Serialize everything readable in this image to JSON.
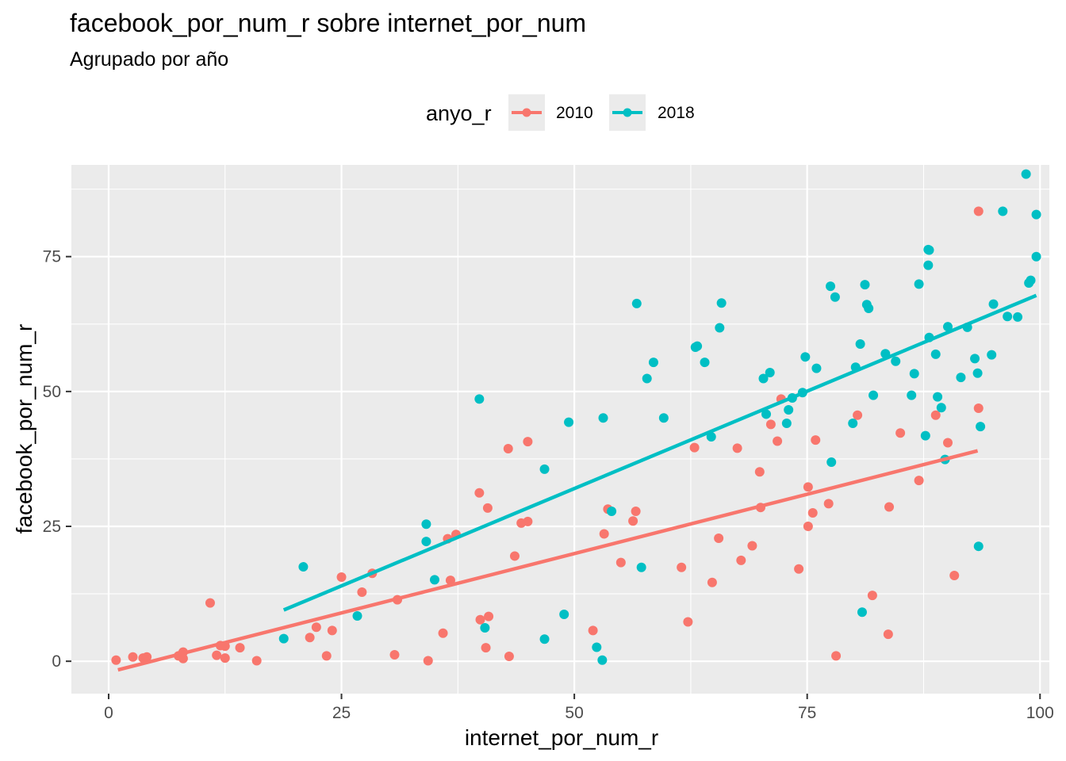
{
  "chart_data": {
    "type": "scatter",
    "title": "facebook_por_num_r sobre internet_por_num",
    "subtitle": "Agrupado por año",
    "xlabel": "internet_por_num_r",
    "ylabel": "facebook_por_num_r",
    "xlim": [
      -4,
      101
    ],
    "ylim": [
      -6,
      92
    ],
    "xticks": [
      0,
      25,
      50,
      75,
      100
    ],
    "yticks": [
      0,
      25,
      50,
      75
    ],
    "grid": true,
    "legend": {
      "title": "anyo_r",
      "position": "top",
      "entries": [
        "2010",
        "2018"
      ]
    },
    "series": [
      {
        "name": "2010",
        "color": "#F8766D",
        "fit": {
          "x": [
            1,
            93.3
          ],
          "y": [
            -1.6,
            39.0
          ]
        },
        "points": [
          [
            0.8,
            0.2
          ],
          [
            2.6,
            0.8
          ],
          [
            3.7,
            0.6
          ],
          [
            4.1,
            0.8
          ],
          [
            7.5,
            1.0
          ],
          [
            8.0,
            1.7
          ],
          [
            8.0,
            0.5
          ],
          [
            10.9,
            10.8
          ],
          [
            11.6,
            1.1
          ],
          [
            12.0,
            2.9
          ],
          [
            12.5,
            2.8
          ],
          [
            12.5,
            0.6
          ],
          [
            14.1,
            2.5
          ],
          [
            15.9,
            0.1
          ],
          [
            21.6,
            4.4
          ],
          [
            22.3,
            6.3
          ],
          [
            23.4,
            1.0
          ],
          [
            24.0,
            5.7
          ],
          [
            25.0,
            15.6
          ],
          [
            27.2,
            12.8
          ],
          [
            28.3,
            16.3
          ],
          [
            30.7,
            1.2
          ],
          [
            31.0,
            11.4
          ],
          [
            34.3,
            0.1
          ],
          [
            35.9,
            5.2
          ],
          [
            36.4,
            22.7
          ],
          [
            36.7,
            15.0
          ],
          [
            37.3,
            23.5
          ],
          [
            39.8,
            31.2
          ],
          [
            39.9,
            7.7
          ],
          [
            40.5,
            2.5
          ],
          [
            40.7,
            28.4
          ],
          [
            40.8,
            8.3
          ],
          [
            42.9,
            39.4
          ],
          [
            43.0,
            0.9
          ],
          [
            43.6,
            19.5
          ],
          [
            44.3,
            25.6
          ],
          [
            45.0,
            25.9
          ],
          [
            45.0,
            40.7
          ],
          [
            52.0,
            5.7
          ],
          [
            53.2,
            23.6
          ],
          [
            53.6,
            28.2
          ],
          [
            55.0,
            18.3
          ],
          [
            56.3,
            26.0
          ],
          [
            56.6,
            27.8
          ],
          [
            61.5,
            17.4
          ],
          [
            62.2,
            7.3
          ],
          [
            62.9,
            39.6
          ],
          [
            64.8,
            14.6
          ],
          [
            65.5,
            22.8
          ],
          [
            67.5,
            39.5
          ],
          [
            67.9,
            18.7
          ],
          [
            69.1,
            21.4
          ],
          [
            69.9,
            35.1
          ],
          [
            70.0,
            28.5
          ],
          [
            71.1,
            43.9
          ],
          [
            71.8,
            40.8
          ],
          [
            72.2,
            48.6
          ],
          [
            74.1,
            17.1
          ],
          [
            75.1,
            32.3
          ],
          [
            75.1,
            25.0
          ],
          [
            75.6,
            27.5
          ],
          [
            75.9,
            41.0
          ],
          [
            77.3,
            29.2
          ],
          [
            78.1,
            1.0
          ],
          [
            80.4,
            45.6
          ],
          [
            82.0,
            12.2
          ],
          [
            83.7,
            5.0
          ],
          [
            83.8,
            28.6
          ],
          [
            85.0,
            42.3
          ],
          [
            87.0,
            33.5
          ],
          [
            88.8,
            45.6
          ],
          [
            90.1,
            40.5
          ],
          [
            90.8,
            15.9
          ],
          [
            93.4,
            83.4
          ],
          [
            93.4,
            46.9
          ]
        ]
      },
      {
        "name": "2018",
        "color": "#00BFC4",
        "fit": {
          "x": [
            18.8,
            99.6
          ],
          "y": [
            9.5,
            67.8
          ]
        },
        "points": [
          [
            18.8,
            4.2
          ],
          [
            20.9,
            17.5
          ],
          [
            26.7,
            8.4
          ],
          [
            34.1,
            25.4
          ],
          [
            34.1,
            22.2
          ],
          [
            35.0,
            15.1
          ],
          [
            39.8,
            48.6
          ],
          [
            40.4,
            6.2
          ],
          [
            46.8,
            4.1
          ],
          [
            46.8,
            35.6
          ],
          [
            48.9,
            8.7
          ],
          [
            49.4,
            44.3
          ],
          [
            52.4,
            2.6
          ],
          [
            53.0,
            0.2
          ],
          [
            53.1,
            45.1
          ],
          [
            54.0,
            27.8
          ],
          [
            56.7,
            66.3
          ],
          [
            57.2,
            17.4
          ],
          [
            57.8,
            52.4
          ],
          [
            58.5,
            55.4
          ],
          [
            59.6,
            45.1
          ],
          [
            63.0,
            58.2
          ],
          [
            63.2,
            58.4
          ],
          [
            64.0,
            55.4
          ],
          [
            64.7,
            41.6
          ],
          [
            65.6,
            61.8
          ],
          [
            65.8,
            66.4
          ],
          [
            70.3,
            52.4
          ],
          [
            70.6,
            45.8
          ],
          [
            71.0,
            53.5
          ],
          [
            72.8,
            44.1
          ],
          [
            73.0,
            46.6
          ],
          [
            73.4,
            48.8
          ],
          [
            74.5,
            49.8
          ],
          [
            74.8,
            56.4
          ],
          [
            76.0,
            54.3
          ],
          [
            77.5,
            69.5
          ],
          [
            77.6,
            36.9
          ],
          [
            78.0,
            67.5
          ],
          [
            79.9,
            44.1
          ],
          [
            80.2,
            54.5
          ],
          [
            80.7,
            58.8
          ],
          [
            80.9,
            9.1
          ],
          [
            81.2,
            69.8
          ],
          [
            81.4,
            66.1
          ],
          [
            81.6,
            65.4
          ],
          [
            82.1,
            49.3
          ],
          [
            83.4,
            57.0
          ],
          [
            84.5,
            55.6
          ],
          [
            86.2,
            49.3
          ],
          [
            86.5,
            53.3
          ],
          [
            87.0,
            69.9
          ],
          [
            87.7,
            41.8
          ],
          [
            88.0,
            76.3
          ],
          [
            88.0,
            73.4
          ],
          [
            88.1,
            76.2
          ],
          [
            88.1,
            60.0
          ],
          [
            88.8,
            56.9
          ],
          [
            89.0,
            49.0
          ],
          [
            89.4,
            47.0
          ],
          [
            89.8,
            37.4
          ],
          [
            90.1,
            62.0
          ],
          [
            91.5,
            52.6
          ],
          [
            92.2,
            61.9
          ],
          [
            93.0,
            56.1
          ],
          [
            93.3,
            53.4
          ],
          [
            93.4,
            21.3
          ],
          [
            93.6,
            43.5
          ],
          [
            94.8,
            56.8
          ],
          [
            95.0,
            66.2
          ],
          [
            96.0,
            83.4
          ],
          [
            96.5,
            63.9
          ],
          [
            97.6,
            63.8
          ],
          [
            98.5,
            90.3
          ],
          [
            98.8,
            70.1
          ],
          [
            99.0,
            70.6
          ],
          [
            99.6,
            82.8
          ],
          [
            99.6,
            75.0
          ]
        ]
      }
    ]
  }
}
